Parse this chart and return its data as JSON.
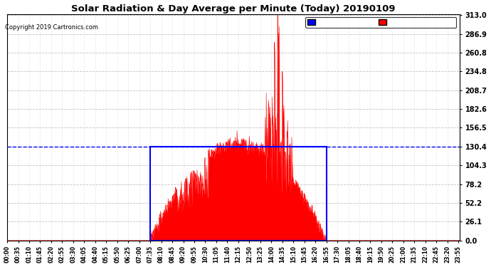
{
  "title": "Solar Radiation & Day Average per Minute (Today) 20190109",
  "copyright": "Copyright 2019 Cartronics.com",
  "yticks": [
    0.0,
    26.1,
    52.2,
    78.2,
    104.3,
    130.4,
    156.5,
    182.6,
    208.7,
    234.8,
    260.8,
    286.9,
    313.0
  ],
  "ymax": 313.0,
  "radiation_color": "#FF0000",
  "median_color": "#0000FF",
  "bg_color": "#FFFFFF",
  "grid_color": "#AAAAAA",
  "legend_median_bg": "#0000FF",
  "legend_radiation_bg": "#FF0000",
  "blue_rect_color": "#0000FF",
  "minutes_per_day": 1440,
  "sunrise_minute": 455,
  "sunset_minute": 1015,
  "median_value": 130.4,
  "peak_minute": 865,
  "peak_value": 313.0,
  "xtick_start": 0,
  "xtick_step": 35,
  "figwidth": 6.9,
  "figheight": 3.75,
  "dpi": 100
}
